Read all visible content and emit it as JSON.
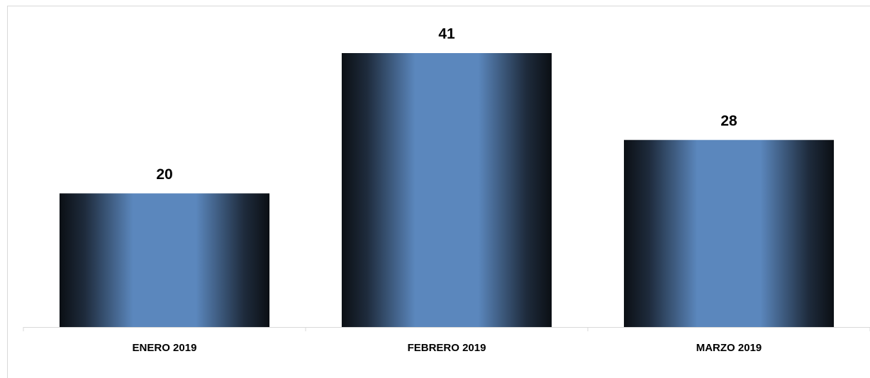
{
  "chart_data": {
    "type": "bar",
    "categories": [
      "ENERO 2019",
      "FEBRERO 2019",
      "MARZO 2019"
    ],
    "values": [
      20,
      41,
      28
    ],
    "color": "#5b87bd"
  }
}
